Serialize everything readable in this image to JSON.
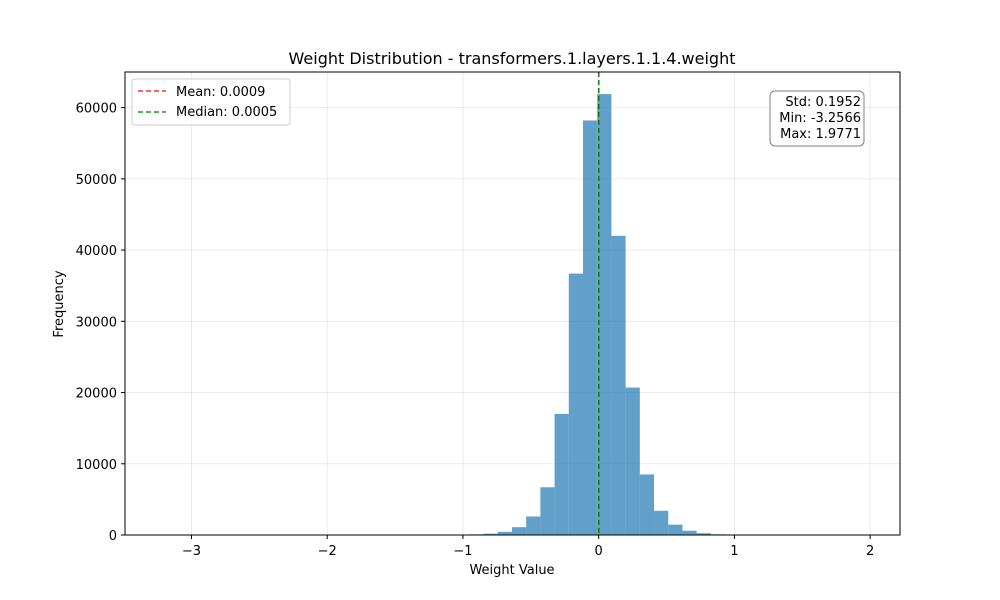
{
  "chart_data": {
    "type": "bar",
    "title": "Weight Distribution - transformers.1.layers.1.1.4.weight",
    "xlabel": "Weight Value",
    "ylabel": "Frequency",
    "xlim": [
      -3.49,
      2.22
    ],
    "ylim": [
      0,
      65000
    ],
    "xticks": [
      -3,
      -2,
      -1,
      0,
      1,
      2
    ],
    "xtick_labels": [
      "−3",
      "−2",
      "−1",
      "0",
      "1",
      "2"
    ],
    "yticks": [
      0,
      10000,
      20000,
      30000,
      40000,
      50000,
      60000
    ],
    "ytick_labels": [
      "0",
      "10000",
      "20000",
      "30000",
      "40000",
      "50000",
      "60000"
    ],
    "grid": true,
    "bar_color": "#1f77b4",
    "bin_edges": [
      -3.2566,
      -3.1519,
      -3.0472,
      -2.9425,
      -2.8378,
      -2.7331,
      -2.6284,
      -2.5237,
      -2.419,
      -2.3143,
      -2.2096,
      -2.1049,
      -2.0002,
      -1.8955,
      -1.7908,
      -1.6861,
      -1.5814,
      -1.4767,
      -1.372,
      -1.2673,
      -1.1626,
      -1.0579,
      -0.9532,
      -0.8485,
      -0.7438,
      -0.6391,
      -0.5344,
      -0.4297,
      -0.325,
      -0.2203,
      -0.1156,
      -0.0109,
      0.0938,
      0.1985,
      0.3032,
      0.4079,
      0.5126,
      0.6173,
      0.722,
      0.8267,
      0.9314,
      1.0361,
      1.1408,
      1.2455,
      1.3502,
      1.4549,
      1.5596,
      1.6643,
      1.769,
      1.8737,
      1.9771
    ],
    "counts": [
      3,
      0,
      0,
      0,
      0,
      0,
      0,
      0,
      0,
      0,
      0,
      0,
      0,
      2,
      0,
      0,
      0,
      3,
      5,
      10,
      20,
      45,
      90,
      180,
      450,
      1100,
      2600,
      6700,
      17000,
      36700,
      58200,
      61900,
      42000,
      20700,
      8500,
      3400,
      1450,
      600,
      250,
      100,
      40,
      15,
      7,
      3,
      1,
      1,
      0,
      0,
      0,
      1
    ],
    "mean_line": {
      "value": 0.0009,
      "color": "#ff0000",
      "label": "Mean: 0.0009"
    },
    "median_line": {
      "value": 0.0005,
      "color": "#008000",
      "label": "Median: 0.0005"
    },
    "legend_placement": "upper-left",
    "stats_box": {
      "placement": "upper-right",
      "lines": [
        "Std: 0.1952",
        "Min: -3.2566",
        "Max: 1.9771"
      ]
    }
  }
}
